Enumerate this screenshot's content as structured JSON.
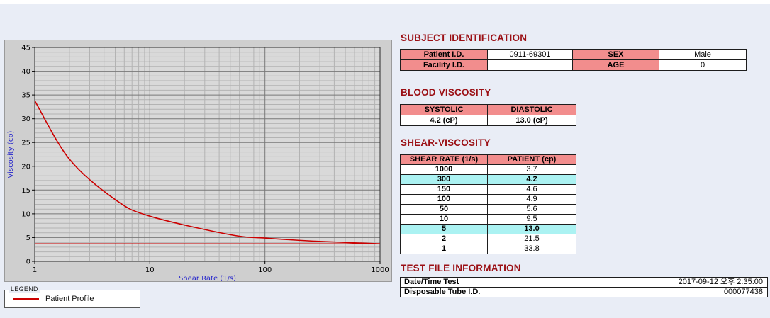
{
  "colors": {
    "page_bg": "#E9EDF6",
    "heading_maroon": "#9B1015",
    "table_header_pink": "#F28D8D",
    "highlight_cyan": "#ABF2F2",
    "series_red": "#CC0000",
    "axis_label_blue": "#2222CC",
    "chart_panel_gray": "#CFCFCF"
  },
  "chart_data": {
    "type": "line",
    "x_scale": "log",
    "x": [
      1,
      2,
      5,
      10,
      50,
      100,
      150,
      300,
      1000
    ],
    "series": [
      {
        "name": "Patient Profile",
        "color": "#cc0000",
        "values": [
          33.8,
          21.5,
          13.0,
          9.5,
          5.6,
          4.9,
          4.6,
          4.2,
          3.7
        ]
      }
    ],
    "cursor_line_y": 3.7,
    "xlim": [
      1,
      1000
    ],
    "ylim": [
      0,
      45
    ],
    "x_ticks": [
      1,
      10,
      100,
      1000
    ],
    "y_ticks": [
      0,
      5,
      10,
      15,
      20,
      25,
      30,
      35,
      40,
      45
    ],
    "y_minor_step": 1,
    "xlabel": "Shear Rate (1/s)",
    "ylabel": "Viscosity (cp)",
    "grid": "on",
    "legend_position": "below-chart-external"
  },
  "legend": {
    "title": "LEGEND",
    "items": [
      {
        "label": "Patient Profile",
        "color": "#cc0000"
      }
    ]
  },
  "subject": {
    "heading": "SUBJECT IDENTIFICATION",
    "rows": [
      {
        "label1": "Patient I.D.",
        "value1": "0911-69301",
        "label2": "SEX",
        "value2": "Male"
      },
      {
        "label1": "Facility I.D.",
        "value1": "",
        "label2": "AGE",
        "value2": "0"
      }
    ]
  },
  "blood_viscosity": {
    "heading": "BLOOD VISCOSITY",
    "headers": [
      "SYSTOLIC",
      "DIASTOLIC"
    ],
    "values": [
      "4.2 (cP)",
      "13.0 (cP)"
    ]
  },
  "shear_viscosity": {
    "heading": "SHEAR-VISCOSITY",
    "headers": [
      "SHEAR RATE (1/s)",
      "PATIENT (cp)"
    ],
    "rows": [
      {
        "rate": "1000",
        "value": "3.7",
        "highlight": false
      },
      {
        "rate": "300",
        "value": "4.2",
        "highlight": true
      },
      {
        "rate": "150",
        "value": "4.6",
        "highlight": false
      },
      {
        "rate": "100",
        "value": "4.9",
        "highlight": false
      },
      {
        "rate": "50",
        "value": "5.6",
        "highlight": false
      },
      {
        "rate": "10",
        "value": "9.5",
        "highlight": false
      },
      {
        "rate": "5",
        "value": "13.0",
        "highlight": true
      },
      {
        "rate": "2",
        "value": "21.5",
        "highlight": false
      },
      {
        "rate": "1",
        "value": "33.8",
        "highlight": false
      }
    ]
  },
  "test_file": {
    "heading": "TEST FILE INFORMATION",
    "rows": [
      {
        "label": "Date/Time Test",
        "value": "2017-09-12  오후 2:35:00"
      },
      {
        "label": "Disposable Tube I.D.",
        "value": "000077438"
      }
    ]
  }
}
